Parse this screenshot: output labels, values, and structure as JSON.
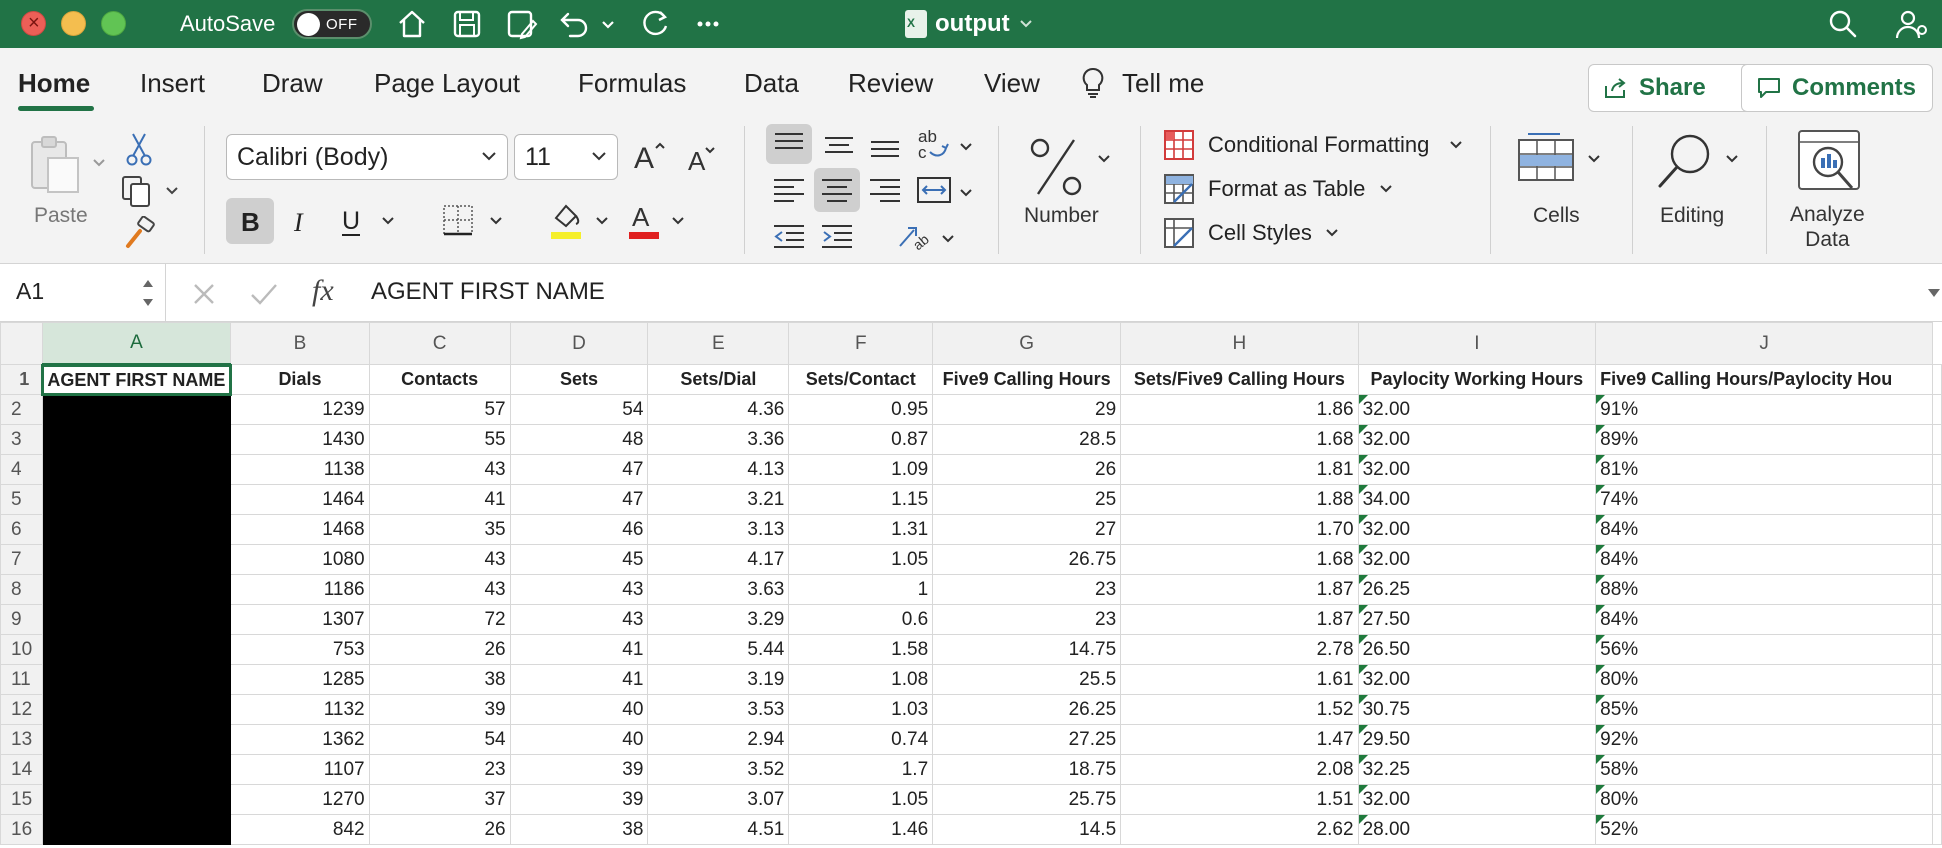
{
  "titlebar": {
    "autosave_label": "AutoSave",
    "autosave_state": "OFF",
    "document_title": "output"
  },
  "tabs": [
    {
      "label": "Home",
      "active": true
    },
    {
      "label": "Insert"
    },
    {
      "label": "Draw"
    },
    {
      "label": "Page Layout"
    },
    {
      "label": "Formulas"
    },
    {
      "label": "Data"
    },
    {
      "label": "Review"
    },
    {
      "label": "View"
    }
  ],
  "tell_me": "Tell me",
  "share_label": "Share",
  "comments_label": "Comments",
  "ribbon": {
    "paste_label": "Paste",
    "font_name": "Calibri (Body)",
    "font_size": "11",
    "number_label": "Number",
    "conditional_formatting": "Conditional Formatting",
    "format_as_table": "Format as Table",
    "cell_styles": "Cell Styles",
    "cells_label": "Cells",
    "editing_label": "Editing",
    "analyze_line1": "Analyze",
    "analyze_line2": "Data"
  },
  "formula_bar": {
    "name_box": "A1",
    "fx": "fx",
    "content": "AGENT FIRST NAME"
  },
  "sheet": {
    "column_letters": [
      "A",
      "B",
      "C",
      "D",
      "E",
      "F",
      "G",
      "H",
      "I",
      "J"
    ],
    "headers": [
      "AGENT FIRST NAME",
      "Dials",
      "Contacts",
      "Sets",
      "Sets/Dial",
      "Sets/Contact",
      "Five9 Calling Hours",
      "Sets/Five9 Calling Hours",
      "Paylocity Working Hours",
      "Five9 Calling Hours/Paylocity Hou"
    ],
    "rows": [
      {
        "n": "2",
        "v": [
          "1239",
          "57",
          "54",
          "4.36",
          "0.95",
          "29",
          "1.86",
          "32.00",
          "91%"
        ]
      },
      {
        "n": "3",
        "v": [
          "1430",
          "55",
          "48",
          "3.36",
          "0.87",
          "28.5",
          "1.68",
          "32.00",
          "89%"
        ]
      },
      {
        "n": "4",
        "v": [
          "1138",
          "43",
          "47",
          "4.13",
          "1.09",
          "26",
          "1.81",
          "32.00",
          "81%"
        ]
      },
      {
        "n": "5",
        "v": [
          "1464",
          "41",
          "47",
          "3.21",
          "1.15",
          "25",
          "1.88",
          "34.00",
          "74%"
        ]
      },
      {
        "n": "6",
        "v": [
          "1468",
          "35",
          "46",
          "3.13",
          "1.31",
          "27",
          "1.70",
          "32.00",
          "84%"
        ]
      },
      {
        "n": "7",
        "v": [
          "1080",
          "43",
          "45",
          "4.17",
          "1.05",
          "26.75",
          "1.68",
          "32.00",
          "84%"
        ]
      },
      {
        "n": "8",
        "v": [
          "1186",
          "43",
          "43",
          "3.63",
          "1",
          "23",
          "1.87",
          "26.25",
          "88%"
        ]
      },
      {
        "n": "9",
        "v": [
          "1307",
          "72",
          "43",
          "3.29",
          "0.6",
          "23",
          "1.87",
          "27.50",
          "84%"
        ]
      },
      {
        "n": "10",
        "v": [
          "753",
          "26",
          "41",
          "5.44",
          "1.58",
          "14.75",
          "2.78",
          "26.50",
          "56%"
        ]
      },
      {
        "n": "11",
        "v": [
          "1285",
          "38",
          "41",
          "3.19",
          "1.08",
          "25.5",
          "1.61",
          "32.00",
          "80%"
        ]
      },
      {
        "n": "12",
        "v": [
          "1132",
          "39",
          "40",
          "3.53",
          "1.03",
          "26.25",
          "1.52",
          "30.75",
          "85%"
        ]
      },
      {
        "n": "13",
        "v": [
          "1362",
          "54",
          "40",
          "2.94",
          "0.74",
          "27.25",
          "1.47",
          "29.50",
          "92%"
        ]
      },
      {
        "n": "14",
        "v": [
          "1107",
          "23",
          "39",
          "3.52",
          "1.7",
          "18.75",
          "2.08",
          "32.25",
          "58%"
        ]
      },
      {
        "n": "15",
        "v": [
          "1270",
          "37",
          "39",
          "3.07",
          "1.05",
          "25.75",
          "1.51",
          "32.00",
          "80%"
        ]
      },
      {
        "n": "16",
        "v": [
          "842",
          "26",
          "38",
          "4.51",
          "1.46",
          "14.5",
          "2.62",
          "28.00",
          "52%"
        ]
      }
    ]
  },
  "colors": {
    "accent": "#217346"
  }
}
